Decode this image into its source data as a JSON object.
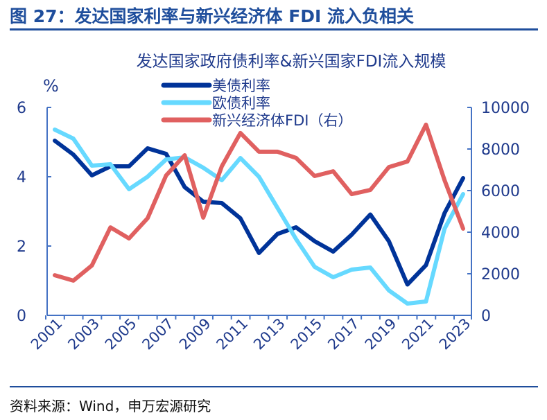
{
  "figure_title": "图 27：发达国家利率与新兴经济体 FDI 流入负相关",
  "source": "资料来源：Wind，申万宏源研究",
  "chart_data": {
    "type": "line",
    "title": "发达国家政府债利率&新兴国家FDI流入规模",
    "ylabel_left": "%",
    "ylim_left": [
      0,
      6
    ],
    "yticks_left": [
      "0",
      "2",
      "4",
      "6"
    ],
    "ylim_right": [
      0,
      10000
    ],
    "yticks_right": [
      "0",
      "2000",
      "4000",
      "6000",
      "8000",
      "10000"
    ],
    "xtick_labels": [
      "2001",
      "2003",
      "2005",
      "2007",
      "2009",
      "2011",
      "2013",
      "2015",
      "2017",
      "2019",
      "2021",
      "2023"
    ],
    "legend_position": "top-center",
    "x": [
      2001,
      2002,
      2003,
      2004,
      2005,
      2006,
      2007,
      2008,
      2009,
      2010,
      2011,
      2012,
      2013,
      2014,
      2015,
      2016,
      2017,
      2018,
      2019,
      2020,
      2021,
      2022,
      2023
    ],
    "series": [
      {
        "name": "美债利率",
        "axis": "left",
        "color": "#003399",
        "values": [
          5.04,
          4.64,
          4.04,
          4.3,
          4.3,
          4.82,
          4.66,
          3.7,
          3.28,
          3.24,
          2.8,
          1.8,
          2.35,
          2.54,
          2.14,
          1.84,
          2.33,
          2.91,
          2.14,
          0.89,
          1.45,
          2.95,
          3.96
        ]
      },
      {
        "name": "欧债利率",
        "axis": "left",
        "color": "#66d9ff",
        "values": [
          5.36,
          5.1,
          4.32,
          4.36,
          3.64,
          4.0,
          4.5,
          4.56,
          4.26,
          3.9,
          4.54,
          4.0,
          3.1,
          2.2,
          1.4,
          1.1,
          1.32,
          1.38,
          0.72,
          0.34,
          0.4,
          2.5,
          3.5
        ]
      },
      {
        "name": "新兴经济体FDI（右）",
        "axis": "right",
        "color": "#e06060",
        "values": [
          1930,
          1670,
          2400,
          4230,
          3700,
          4670,
          6730,
          7700,
          4700,
          7170,
          8770,
          7870,
          7870,
          7570,
          6700,
          6930,
          5830,
          6030,
          7130,
          7400,
          9170,
          6500,
          4170
        ]
      }
    ]
  }
}
